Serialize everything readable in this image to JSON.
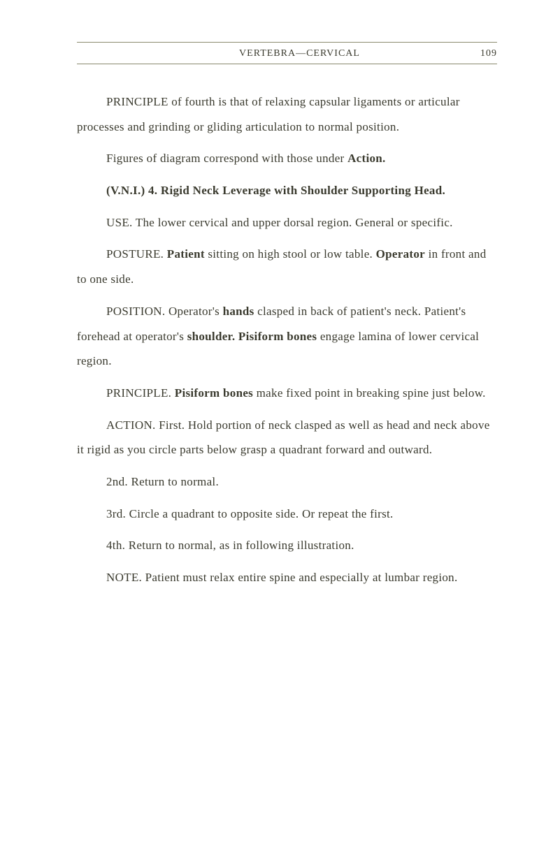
{
  "header": {
    "title": "VERTEBRA—CERVICAL",
    "page_number": "109"
  },
  "paragraphs": {
    "p1": {
      "prefix": "PRINCIPLE of fourth is that of relaxing capsular ligaments or articular processes and grinding or gliding articulation to normal position."
    },
    "p2": {
      "text_a": "Figures of diagram correspond with those under ",
      "bold_a": "Action."
    },
    "p3": {
      "bold_a": "(V.N.I.) 4. Rigid Neck Leverage with Shoulder Supporting Head."
    },
    "p4": {
      "text": "USE. The lower cervical and upper dorsal region. General or specific."
    },
    "p5": {
      "text_a": "POSTURE. ",
      "bold_a": "Patient",
      "text_b": " sitting on high stool or low table. ",
      "bold_b": "Operator",
      "text_c": " in front and to one side."
    },
    "p6": {
      "text_a": "POSITION. Operator's ",
      "bold_a": "hands",
      "text_b": " clasped in back of patient's neck. Patient's forehead at operator's ",
      "bold_b": "shoulder. Pisiform bones",
      "text_c": " engage lamina of lower cervical region."
    },
    "p7": {
      "text_a": "PRINCIPLE. ",
      "bold_a": "Pisiform bones",
      "text_b": " make fixed point in breaking spine just below."
    },
    "p8": {
      "text": "ACTION. First. Hold portion of neck clasped as well as head and neck above it rigid as you circle parts below grasp a quadrant forward and outward."
    },
    "p9": {
      "text": "2nd. Return to normal."
    },
    "p10": {
      "text": "3rd. Circle a quadrant to opposite side. Or repeat the first."
    },
    "p11": {
      "text": "4th. Return to normal, as in following illustration."
    },
    "p12": {
      "text": "NOTE. Patient must relax entire spine and especially at lumbar region."
    }
  },
  "colors": {
    "background": "#ffffff",
    "text": "#3a3a2e",
    "rule": "#8a8a6e"
  },
  "typography": {
    "body_fontsize": 17,
    "header_fontsize": 14,
    "line_height": 2.1,
    "text_indent": 42
  }
}
